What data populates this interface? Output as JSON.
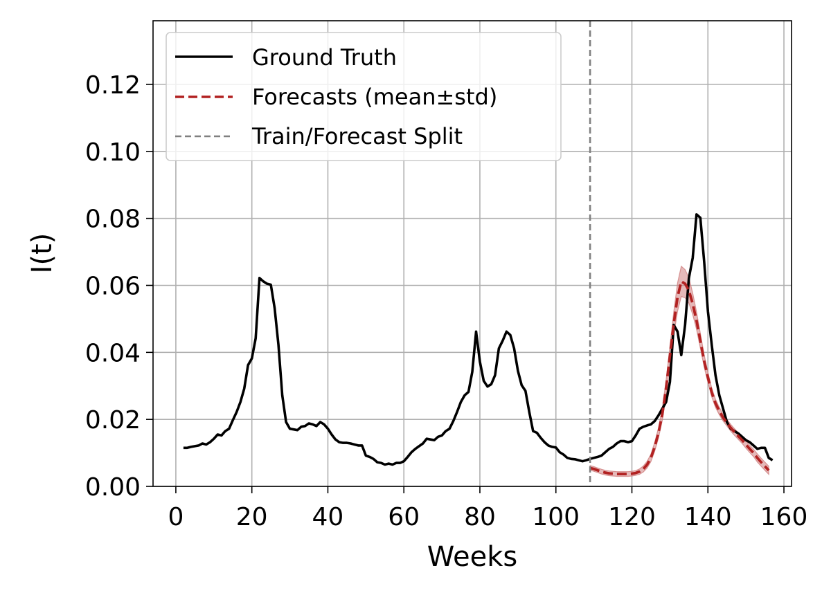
{
  "chart_data": {
    "type": "line",
    "xlabel": "Weeks",
    "ylabel": "I(t)",
    "xlim": [
      -6,
      162
    ],
    "ylim": [
      0,
      0.139
    ],
    "xticks": [
      0,
      20,
      40,
      60,
      80,
      100,
      120,
      140,
      160
    ],
    "yticks": [
      0.0,
      0.02,
      0.04,
      0.06,
      0.08,
      0.1,
      0.12
    ],
    "xtick_labels": [
      "0",
      "20",
      "40",
      "60",
      "80",
      "100",
      "120",
      "140",
      "160"
    ],
    "ytick_labels": [
      "0.00",
      "0.02",
      "0.04",
      "0.06",
      "0.08",
      "0.10",
      "0.12"
    ],
    "grid": true,
    "legend_position": "top-left",
    "split_x": 109,
    "series": [
      {
        "name": "Ground Truth",
        "style": "solid",
        "color": "#000000",
        "points": [
          [
            2,
            0.0115
          ],
          [
            3,
            0.0115
          ],
          [
            4,
            0.0118
          ],
          [
            5,
            0.012
          ],
          [
            6,
            0.0122
          ],
          [
            7,
            0.0128
          ],
          [
            8,
            0.0125
          ],
          [
            9,
            0.0132
          ],
          [
            10,
            0.0142
          ],
          [
            11,
            0.0155
          ],
          [
            12,
            0.0152
          ],
          [
            13,
            0.0165
          ],
          [
            14,
            0.0172
          ],
          [
            15,
            0.0198
          ],
          [
            16,
            0.0222
          ],
          [
            17,
            0.0252
          ],
          [
            18,
            0.0292
          ],
          [
            19,
            0.0362
          ],
          [
            20,
            0.0382
          ],
          [
            21,
            0.0442
          ],
          [
            22,
            0.0622
          ],
          [
            23,
            0.0612
          ],
          [
            24,
            0.0605
          ],
          [
            25,
            0.0602
          ],
          [
            26,
            0.0532
          ],
          [
            27,
            0.0422
          ],
          [
            28,
            0.0272
          ],
          [
            29,
            0.0192
          ],
          [
            30,
            0.0172
          ],
          [
            31,
            0.017
          ],
          [
            32,
            0.0168
          ],
          [
            33,
            0.0178
          ],
          [
            34,
            0.018
          ],
          [
            35,
            0.0188
          ],
          [
            36,
            0.0185
          ],
          [
            37,
            0.018
          ],
          [
            38,
            0.0192
          ],
          [
            39,
            0.0185
          ],
          [
            40,
            0.0172
          ],
          [
            41,
            0.0155
          ],
          [
            42,
            0.014
          ],
          [
            43,
            0.0132
          ],
          [
            44,
            0.013
          ],
          [
            45,
            0.013
          ],
          [
            46,
            0.0128
          ],
          [
            47,
            0.0125
          ],
          [
            48,
            0.0122
          ],
          [
            49,
            0.0122
          ],
          [
            50,
            0.0092
          ],
          [
            51,
            0.0088
          ],
          [
            52,
            0.0082
          ],
          [
            53,
            0.0072
          ],
          [
            54,
            0.007
          ],
          [
            55,
            0.0065
          ],
          [
            56,
            0.0068
          ],
          [
            57,
            0.0065
          ],
          [
            58,
            0.007
          ],
          [
            59,
            0.007
          ],
          [
            60,
            0.0075
          ],
          [
            61,
            0.0088
          ],
          [
            62,
            0.0102
          ],
          [
            63,
            0.0112
          ],
          [
            64,
            0.012
          ],
          [
            65,
            0.0128
          ],
          [
            66,
            0.0142
          ],
          [
            67,
            0.014
          ],
          [
            68,
            0.0138
          ],
          [
            69,
            0.0148
          ],
          [
            70,
            0.0152
          ],
          [
            71,
            0.0165
          ],
          [
            72,
            0.0172
          ],
          [
            73,
            0.0195
          ],
          [
            74,
            0.0222
          ],
          [
            75,
            0.0252
          ],
          [
            76,
            0.0272
          ],
          [
            77,
            0.0282
          ],
          [
            78,
            0.0342
          ],
          [
            79,
            0.0462
          ],
          [
            80,
            0.0372
          ],
          [
            81,
            0.0315
          ],
          [
            82,
            0.0298
          ],
          [
            83,
            0.0305
          ],
          [
            84,
            0.0332
          ],
          [
            85,
            0.0412
          ],
          [
            86,
            0.0435
          ],
          [
            87,
            0.0462
          ],
          [
            88,
            0.0452
          ],
          [
            89,
            0.0412
          ],
          [
            90,
            0.0345
          ],
          [
            91,
            0.0302
          ],
          [
            92,
            0.0285
          ],
          [
            93,
            0.0222
          ],
          [
            94,
            0.0165
          ],
          [
            95,
            0.016
          ],
          [
            96,
            0.0145
          ],
          [
            97,
            0.0132
          ],
          [
            98,
            0.0122
          ],
          [
            99,
            0.0118
          ],
          [
            100,
            0.0116
          ],
          [
            101,
            0.0102
          ],
          [
            102,
            0.0095
          ],
          [
            103,
            0.0085
          ],
          [
            104,
            0.0082
          ],
          [
            105,
            0.0081
          ],
          [
            106,
            0.0078
          ],
          [
            107,
            0.0075
          ],
          [
            108,
            0.0078
          ],
          [
            109,
            0.0082
          ],
          [
            110,
            0.0085
          ],
          [
            111,
            0.0088
          ],
          [
            112,
            0.0092
          ],
          [
            113,
            0.0102
          ],
          [
            114,
            0.0112
          ],
          [
            115,
            0.0118
          ],
          [
            116,
            0.0128
          ],
          [
            117,
            0.0135
          ],
          [
            118,
            0.0135
          ],
          [
            119,
            0.0132
          ],
          [
            120,
            0.0135
          ],
          [
            121,
            0.0152
          ],
          [
            122,
            0.0172
          ],
          [
            123,
            0.0178
          ],
          [
            124,
            0.0182
          ],
          [
            125,
            0.0185
          ],
          [
            126,
            0.0195
          ],
          [
            127,
            0.0212
          ],
          [
            128,
            0.0232
          ],
          [
            129,
            0.0252
          ],
          [
            130,
            0.0312
          ],
          [
            131,
            0.0482
          ],
          [
            132,
            0.0462
          ],
          [
            133,
            0.0392
          ],
          [
            134,
            0.0482
          ],
          [
            135,
            0.0622
          ],
          [
            136,
            0.0682
          ],
          [
            137,
            0.0812
          ],
          [
            138,
            0.0802
          ],
          [
            139,
            0.0672
          ],
          [
            140,
            0.0522
          ],
          [
            141,
            0.0422
          ],
          [
            142,
            0.0332
          ],
          [
            143,
            0.0272
          ],
          [
            144,
            0.0232
          ],
          [
            145,
            0.0192
          ],
          [
            146,
            0.0172
          ],
          [
            147,
            0.0165
          ],
          [
            148,
            0.0158
          ],
          [
            149,
            0.0148
          ],
          [
            150,
            0.0138
          ],
          [
            151,
            0.0132
          ],
          [
            152,
            0.0122
          ],
          [
            153,
            0.0112
          ],
          [
            154,
            0.0115
          ],
          [
            155,
            0.0115
          ],
          [
            156,
            0.0085
          ],
          [
            157,
            0.0078
          ]
        ]
      },
      {
        "name": "Forecasts (mean±std)",
        "style": "dashed",
        "color": "#b22222",
        "band_color": "#d08080",
        "points": [
          [
            109,
            0.0055
          ],
          [
            110,
            0.0052
          ],
          [
            111,
            0.0048
          ],
          [
            112,
            0.0044
          ],
          [
            113,
            0.0041
          ],
          [
            114,
            0.0039
          ],
          [
            115,
            0.0038
          ],
          [
            116,
            0.0037
          ],
          [
            117,
            0.0037
          ],
          [
            118,
            0.0037
          ],
          [
            119,
            0.0037
          ],
          [
            120,
            0.0038
          ],
          [
            121,
            0.004
          ],
          [
            122,
            0.0044
          ],
          [
            123,
            0.0052
          ],
          [
            124,
            0.0065
          ],
          [
            125,
            0.0085
          ],
          [
            126,
            0.0118
          ],
          [
            127,
            0.016
          ],
          [
            128,
            0.0215
          ],
          [
            129,
            0.0295
          ],
          [
            130,
            0.039
          ],
          [
            131,
            0.0485
          ],
          [
            132,
            0.0565
          ],
          [
            133,
            0.0612
          ],
          [
            134,
            0.0605
          ],
          [
            135,
            0.0585
          ],
          [
            136,
            0.0545
          ],
          [
            137,
            0.0495
          ],
          [
            138,
            0.0435
          ],
          [
            139,
            0.0375
          ],
          [
            140,
            0.0325
          ],
          [
            141,
            0.028
          ],
          [
            142,
            0.0248
          ],
          [
            143,
            0.0225
          ],
          [
            144,
            0.0205
          ],
          [
            145,
            0.019
          ],
          [
            146,
            0.0175
          ],
          [
            147,
            0.0162
          ],
          [
            148,
            0.015
          ],
          [
            149,
            0.0138
          ],
          [
            150,
            0.0125
          ],
          [
            151,
            0.0112
          ],
          [
            152,
            0.01
          ],
          [
            153,
            0.0085
          ],
          [
            154,
            0.0072
          ],
          [
            155,
            0.006
          ],
          [
            156,
            0.0048
          ]
        ],
        "std": [
          0.0007,
          0.0007,
          0.0007,
          0.0007,
          0.0007,
          0.0007,
          0.0007,
          0.0007,
          0.0007,
          0.0007,
          0.0007,
          0.0007,
          0.0007,
          0.0008,
          0.0009,
          0.001,
          0.0011,
          0.0013,
          0.0015,
          0.0018,
          0.0022,
          0.0028,
          0.0035,
          0.0042,
          0.0045,
          0.0042,
          0.0038,
          0.0032,
          0.0026,
          0.0022,
          0.0018,
          0.0015,
          0.0013,
          0.0012,
          0.0011,
          0.001,
          0.001,
          0.001,
          0.001,
          0.001,
          0.001,
          0.0011,
          0.0011,
          0.0011,
          0.0012,
          0.0012,
          0.0012,
          0.0012
        ]
      },
      {
        "name": "Train/Forecast Split",
        "style": "dashed",
        "color": "#808080"
      }
    ]
  }
}
